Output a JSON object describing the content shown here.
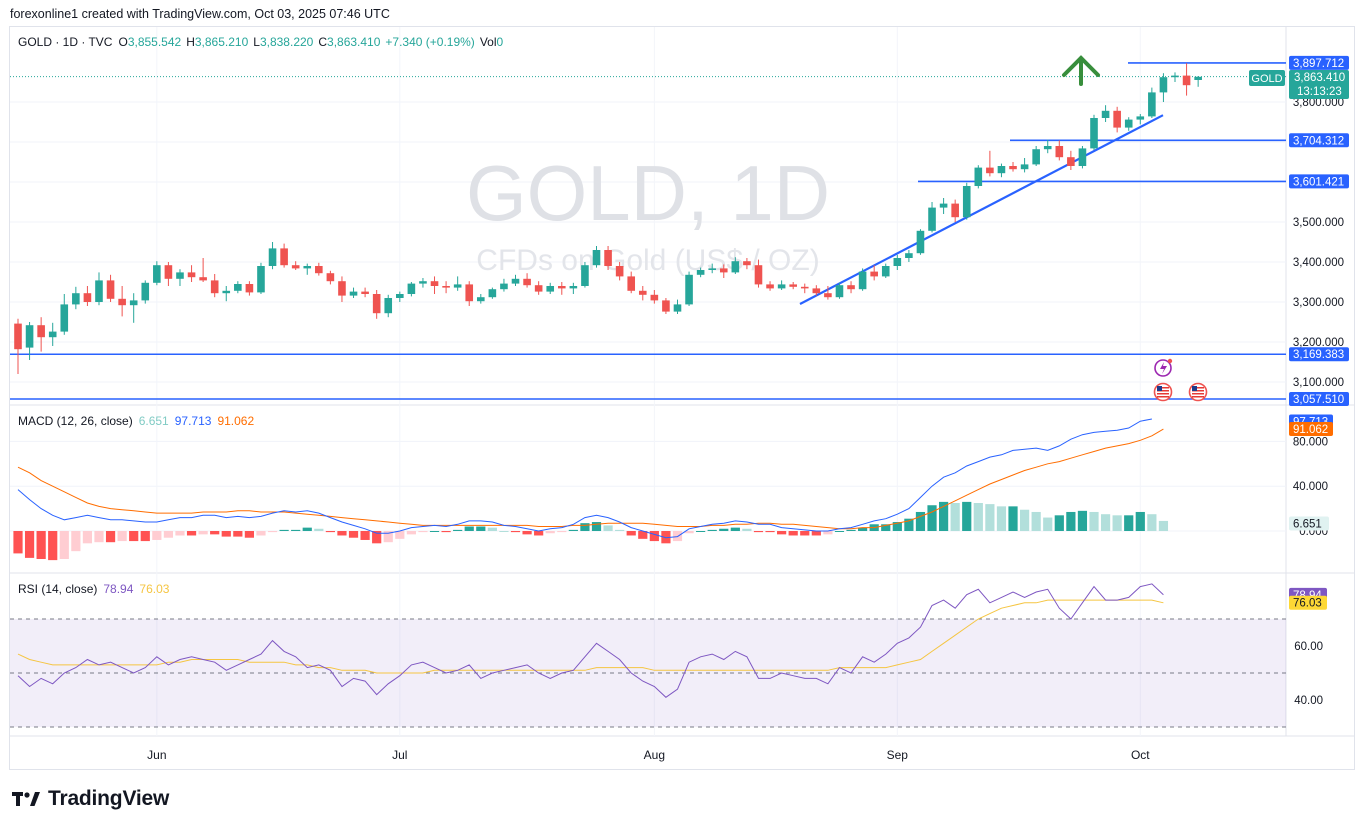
{
  "caption": "forexonline1 created with TradingView.com, Oct 03, 2025 07:46 UTC",
  "brand": "TradingView",
  "legend": {
    "symbol": "GOLD · 1D · TVC",
    "o_label": "O",
    "o": "3,855.542",
    "h_label": "H",
    "h": "3,865.210",
    "l_label": "L",
    "l": "3,838.220",
    "c_label": "C",
    "c": "3,863.410",
    "change": "+7.340 (+0.19%)",
    "vol_label": "Vol",
    "vol": "0"
  },
  "watermark": {
    "title": "GOLD, 1D",
    "subtitle": "CFDs on Gold (US$ / OZ)"
  },
  "price_tag": {
    "symbol": "GOLD",
    "price": "3,863.410",
    "countdown": "13:13:23"
  },
  "colors": {
    "up": "#26a69a",
    "down": "#ef5350",
    "level": "#2962ff",
    "macd": "#2962ff",
    "signal": "#ff6d00",
    "rsi": "#7e57c2",
    "rsi_ma": "#fdd835",
    "arrow": "#388e3c"
  },
  "macd_legend": {
    "label": "MACD (12, 26, close)",
    "hist": "6.651",
    "macd": "97.713",
    "signal": "91.062"
  },
  "rsi_legend": {
    "label": "RSI (14, close)",
    "rsi": "78.94",
    "ma": "76.03"
  },
  "chart_data": [
    {
      "type": "candlestick",
      "title": "GOLD · 1D · TVC",
      "x_labels": [
        "Jun",
        "Jul",
        "Aug",
        "Sep",
        "Oct"
      ],
      "y_ticks": [
        "3,800.000",
        "3,500.000",
        "3,400.000",
        "3,300.000",
        "3,200.000",
        "3,100.000"
      ],
      "ylim": [
        3030,
        3945
      ],
      "horizontal_levels": [
        "3,897.712",
        "3,704.312",
        "3,601.421",
        "3,169.383",
        "3,057.510"
      ],
      "trendline": {
        "from": [
          "Aug 18",
          3295
        ],
        "to": [
          "Oct 03",
          3767
        ]
      },
      "annotation": "up-arrow",
      "ohlc": [
        [
          3246,
          3258,
          3120,
          3182
        ],
        [
          3186,
          3250,
          3155,
          3242
        ],
        [
          3242,
          3262,
          3176,
          3212
        ],
        [
          3212,
          3248,
          3190,
          3226
        ],
        [
          3226,
          3320,
          3218,
          3294
        ],
        [
          3294,
          3338,
          3282,
          3322
        ],
        [
          3322,
          3340,
          3290,
          3300
        ],
        [
          3300,
          3374,
          3292,
          3354
        ],
        [
          3354,
          3368,
          3300,
          3308
        ],
        [
          3308,
          3340,
          3264,
          3292
        ],
        [
          3292,
          3322,
          3248,
          3304
        ],
        [
          3304,
          3354,
          3296,
          3348
        ],
        [
          3348,
          3402,
          3342,
          3392
        ],
        [
          3392,
          3400,
          3340,
          3358
        ],
        [
          3358,
          3382,
          3340,
          3374
        ],
        [
          3374,
          3392,
          3350,
          3362
        ],
        [
          3362,
          3410,
          3350,
          3354
        ],
        [
          3354,
          3370,
          3312,
          3322
        ],
        [
          3322,
          3340,
          3302,
          3328
        ],
        [
          3328,
          3352,
          3322,
          3345
        ],
        [
          3345,
          3352,
          3316,
          3324
        ],
        [
          3324,
          3398,
          3320,
          3390
        ],
        [
          3390,
          3450,
          3382,
          3434
        ],
        [
          3434,
          3446,
          3386,
          3392
        ],
        [
          3392,
          3402,
          3380,
          3384
        ],
        [
          3384,
          3396,
          3368,
          3390
        ],
        [
          3390,
          3398,
          3366,
          3372
        ],
        [
          3372,
          3378,
          3344,
          3352
        ],
        [
          3352,
          3364,
          3300,
          3316
        ],
        [
          3316,
          3336,
          3310,
          3326
        ],
        [
          3326,
          3336,
          3312,
          3320
        ],
        [
          3320,
          3330,
          3258,
          3272
        ],
        [
          3272,
          3318,
          3262,
          3310
        ],
        [
          3310,
          3326,
          3300,
          3320
        ],
        [
          3320,
          3350,
          3314,
          3346
        ],
        [
          3346,
          3360,
          3336,
          3352
        ],
        [
          3352,
          3364,
          3320,
          3340
        ],
        [
          3340,
          3352,
          3322,
          3336
        ],
        [
          3336,
          3364,
          3328,
          3344
        ],
        [
          3344,
          3352,
          3290,
          3302
        ],
        [
          3302,
          3320,
          3296,
          3312
        ],
        [
          3312,
          3336,
          3308,
          3332
        ],
        [
          3332,
          3358,
          3326,
          3346
        ],
        [
          3346,
          3368,
          3340,
          3358
        ],
        [
          3358,
          3372,
          3336,
          3342
        ],
        [
          3342,
          3352,
          3318,
          3326
        ],
        [
          3326,
          3348,
          3320,
          3340
        ],
        [
          3340,
          3350,
          3318,
          3334
        ],
        [
          3334,
          3348,
          3320,
          3340
        ],
        [
          3340,
          3400,
          3336,
          3392
        ],
        [
          3392,
          3440,
          3386,
          3430
        ],
        [
          3430,
          3440,
          3380,
          3390
        ],
        [
          3390,
          3400,
          3354,
          3364
        ],
        [
          3364,
          3376,
          3322,
          3328
        ],
        [
          3328,
          3340,
          3304,
          3318
        ],
        [
          3318,
          3330,
          3296,
          3304
        ],
        [
          3304,
          3310,
          3270,
          3276
        ],
        [
          3276,
          3306,
          3270,
          3294
        ],
        [
          3294,
          3376,
          3290,
          3368
        ],
        [
          3368,
          3386,
          3362,
          3380
        ],
        [
          3380,
          3396,
          3372,
          3384
        ],
        [
          3384,
          3394,
          3360,
          3374
        ],
        [
          3374,
          3412,
          3370,
          3402
        ],
        [
          3402,
          3410,
          3382,
          3392
        ],
        [
          3392,
          3406,
          3336,
          3344
        ],
        [
          3344,
          3352,
          3328,
          3334
        ],
        [
          3334,
          3354,
          3330,
          3344
        ],
        [
          3344,
          3350,
          3332,
          3338
        ],
        [
          3338,
          3346,
          3322,
          3334
        ],
        [
          3334,
          3342,
          3316,
          3322
        ],
        [
          3322,
          3340,
          3306,
          3312
        ],
        [
          3312,
          3348,
          3308,
          3342
        ],
        [
          3342,
          3352,
          3322,
          3332
        ],
        [
          3332,
          3384,
          3328,
          3376
        ],
        [
          3376,
          3392,
          3354,
          3364
        ],
        [
          3364,
          3396,
          3360,
          3390
        ],
        [
          3390,
          3418,
          3380,
          3410
        ],
        [
          3410,
          3430,
          3400,
          3422
        ],
        [
          3422,
          3482,
          3418,
          3478
        ],
        [
          3478,
          3550,
          3474,
          3536
        ],
        [
          3536,
          3560,
          3520,
          3546
        ],
        [
          3546,
          3556,
          3500,
          3512
        ],
        [
          3512,
          3598,
          3506,
          3590
        ],
        [
          3590,
          3642,
          3584,
          3636
        ],
        [
          3636,
          3678,
          3614,
          3622
        ],
        [
          3622,
          3646,
          3612,
          3640
        ],
        [
          3640,
          3650,
          3626,
          3632
        ],
        [
          3632,
          3660,
          3624,
          3644
        ],
        [
          3644,
          3690,
          3640,
          3682
        ],
        [
          3682,
          3706,
          3672,
          3690
        ],
        [
          3690,
          3704,
          3654,
          3662
        ],
        [
          3662,
          3678,
          3630,
          3640
        ],
        [
          3640,
          3690,
          3634,
          3684
        ],
        [
          3684,
          3768,
          3680,
          3760
        ],
        [
          3760,
          3792,
          3750,
          3778
        ],
        [
          3778,
          3788,
          3724,
          3736
        ],
        [
          3736,
          3762,
          3728,
          3756
        ],
        [
          3756,
          3770,
          3744,
          3764
        ],
        [
          3764,
          3836,
          3760,
          3824
        ],
        [
          3824,
          3872,
          3800,
          3862
        ],
        [
          3862,
          3874,
          3850,
          3866
        ],
        [
          3866,
          3897,
          3816,
          3842
        ],
        [
          3855,
          3865,
          3838,
          3863
        ]
      ]
    },
    {
      "type": "line+histogram",
      "title": "MACD (12, 26, close)",
      "y_ticks": [
        "80.000",
        "40.000",
        "0.000"
      ],
      "ylim": [
        -30,
        110
      ],
      "last": {
        "histogram": 6.651,
        "macd": 97.713,
        "signal": 91.062
      },
      "macd": [
        37,
        28,
        20,
        14,
        10,
        12,
        14,
        12,
        10,
        10,
        9,
        8,
        8,
        10,
        12,
        12,
        14,
        14,
        12,
        13,
        12,
        13,
        16,
        18,
        17,
        18,
        16,
        12,
        8,
        5,
        2,
        -2,
        -2,
        0,
        3,
        4,
        5,
        4,
        6,
        9,
        9,
        8,
        5,
        4,
        2,
        0,
        2,
        3,
        6,
        12,
        14,
        12,
        8,
        3,
        0,
        -3,
        -6,
        -5,
        2,
        4,
        6,
        7,
        9,
        8,
        6,
        6,
        3,
        2,
        1,
        0,
        0,
        2,
        3,
        6,
        9,
        11,
        15,
        20,
        30,
        40,
        48,
        52,
        58,
        62,
        66,
        68,
        72,
        73,
        74,
        72,
        76,
        82,
        86,
        88,
        89,
        90,
        92,
        98,
        100
      ],
      "signal": [
        57,
        52,
        45,
        40,
        35,
        30,
        25,
        22,
        20,
        19,
        18,
        17,
        16,
        16,
        16,
        16,
        17,
        17,
        17,
        18,
        18,
        17,
        17,
        17,
        16,
        15,
        14,
        13,
        12,
        11,
        10,
        9,
        8,
        7,
        6,
        5,
        5,
        5,
        5,
        5,
        5,
        5,
        5,
        5,
        5,
        4,
        4,
        4,
        5,
        5,
        6,
        7,
        7,
        7,
        7,
        6,
        5,
        4,
        4,
        4,
        5,
        5,
        6,
        6,
        7,
        7,
        6,
        6,
        5,
        4,
        3,
        2,
        2,
        3,
        3,
        5,
        7,
        9,
        13,
        17,
        22,
        27,
        32,
        37,
        42,
        46,
        50,
        54,
        57,
        60,
        62,
        65,
        68,
        71,
        74,
        76,
        78,
        81,
        85,
        91
      ],
      "histogram": [
        -20,
        -24,
        -25,
        -26,
        -25,
        -18,
        -11,
        -10,
        -10,
        -9,
        -9,
        -9,
        -8,
        -6,
        -4,
        -4,
        -3,
        -3,
        -5,
        -5,
        -6,
        -4,
        -1,
        1,
        1,
        3,
        2,
        -1,
        -4,
        -6,
        -8,
        -11,
        -10,
        -7,
        -3,
        -1,
        0,
        -1,
        1,
        4,
        4,
        3,
        0,
        -1,
        -3,
        -4,
        -2,
        -1,
        1,
        7,
        8,
        5,
        1,
        -4,
        -7,
        -9,
        -11,
        -9,
        -2,
        0,
        1,
        2,
        3,
        2,
        -1,
        -1,
        -3,
        -4,
        -4,
        -4,
        -3,
        0,
        1,
        3,
        6,
        6,
        8,
        11,
        17,
        23,
        26,
        25,
        26,
        25,
        24,
        22,
        22,
        19,
        17,
        12,
        14,
        17,
        18,
        17,
        15,
        14,
        14,
        17,
        15,
        9
      ]
    },
    {
      "type": "line",
      "title": "RSI (14, close)",
      "y_ticks": [
        "60.00",
        "40.00"
      ],
      "bands": [
        70,
        50,
        30
      ],
      "ylim": [
        27,
        85
      ],
      "last": {
        "rsi": 78.94,
        "ma": 76.03
      },
      "rsi": [
        49,
        45,
        48,
        46,
        50,
        52,
        55,
        53,
        54,
        52,
        50,
        52,
        56,
        53,
        55,
        56,
        55,
        54,
        51,
        53,
        55,
        57,
        62,
        58,
        56,
        52,
        53,
        51,
        45,
        48,
        47,
        42,
        46,
        49,
        53,
        54,
        52,
        50,
        51,
        53,
        48,
        50,
        51,
        52,
        53,
        50,
        48,
        50,
        51,
        56,
        61,
        58,
        55,
        50,
        47,
        45,
        41,
        44,
        54,
        56,
        57,
        55,
        58,
        56,
        48,
        48,
        50,
        49,
        48,
        48,
        46,
        52,
        50,
        56,
        54,
        57,
        61,
        63,
        67,
        75,
        77,
        74,
        79,
        81,
        76,
        78,
        80,
        78,
        80,
        81,
        74,
        70,
        76,
        82,
        77,
        77,
        78,
        82,
        83,
        79
      ],
      "ma": [
        57,
        55,
        54,
        53,
        53,
        53,
        53,
        53,
        53,
        53,
        53,
        53,
        53,
        54,
        54,
        55,
        55,
        55,
        55,
        55,
        54,
        54,
        54,
        54,
        53,
        53,
        52,
        52,
        51,
        51,
        51,
        50,
        50,
        50,
        50,
        50,
        51,
        51,
        51,
        51,
        51,
        51,
        51,
        51,
        51,
        51,
        51,
        51,
        51,
        51,
        52,
        52,
        52,
        52,
        52,
        51,
        51,
        51,
        51,
        51,
        51,
        51,
        51,
        51,
        51,
        51,
        51,
        51,
        51,
        51,
        51,
        52,
        52,
        52,
        52,
        52,
        53,
        54,
        55,
        58,
        61,
        64,
        67,
        70,
        72,
        74,
        75,
        76,
        76,
        77,
        77,
        77,
        77,
        77,
        77,
        77,
        77,
        77,
        77,
        76
      ]
    }
  ]
}
